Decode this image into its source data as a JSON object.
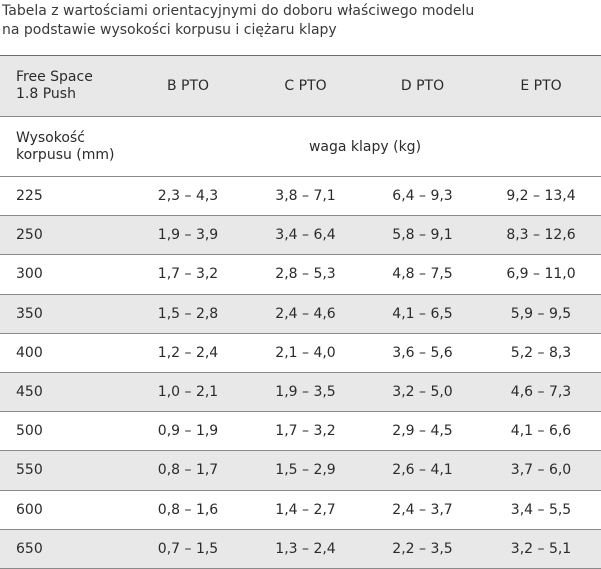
{
  "caption": {
    "line1": "Tabela z wartościami orientacyjnymi do doboru właściwego modelu",
    "line2": "na podstawie wysokości korpusu i ciężaru klapy"
  },
  "header": {
    "product_line1": "Free Space",
    "product_line2": "1.8 Push",
    "columns": [
      "B PTO",
      "C PTO",
      "D PTO",
      "E PTO"
    ]
  },
  "subheader": {
    "height_line1": "Wysokość",
    "height_line2": "korpusu (mm)",
    "weight_label": "waga klapy (kg)"
  },
  "rows": [
    {
      "height": "225",
      "values": [
        "2,3 – 4,3",
        "3,8 – 7,1",
        "6,4 – 9,3",
        "9,2 – 13,4"
      ]
    },
    {
      "height": "250",
      "values": [
        "1,9 – 3,9",
        "3,4 – 6,4",
        "5,8 – 9,1",
        "8,3 – 12,6"
      ]
    },
    {
      "height": "300",
      "values": [
        "1,7 – 3,2",
        "2,8 – 5,3",
        "4,8 – 7,5",
        "6,9 – 11,0"
      ]
    },
    {
      "height": "350",
      "values": [
        "1,5 – 2,8",
        "2,4 – 4,6",
        "4,1 – 6,5",
        "5,9 – 9,5"
      ]
    },
    {
      "height": "400",
      "values": [
        "1,2 – 2,4",
        "2,1 – 4,0",
        "3,6 – 5,6",
        "5,2 – 8,3"
      ]
    },
    {
      "height": "450",
      "values": [
        "1,0 – 2,1",
        "1,9 – 3,5",
        "3,2 – 5,0",
        "4,6 – 7,3"
      ]
    },
    {
      "height": "500",
      "values": [
        "0,9 – 1,9",
        "1,7 – 3,2",
        "2,9 – 4,5",
        "4,1 – 6,6"
      ]
    },
    {
      "height": "550",
      "values": [
        "0,8 – 1,7",
        "1,5 – 2,9",
        "2,6 – 4,1",
        "3,7 – 6,0"
      ]
    },
    {
      "height": "600",
      "values": [
        "0,8 – 1,6",
        "1,4 – 2,7",
        "2,4 – 3,7",
        "3,4 – 5,5"
      ]
    },
    {
      "height": "650",
      "values": [
        "0,7 – 1,5",
        "1,3 – 2,4",
        "2,2 – 3,5",
        "3,2 – 5,1"
      ]
    }
  ]
}
